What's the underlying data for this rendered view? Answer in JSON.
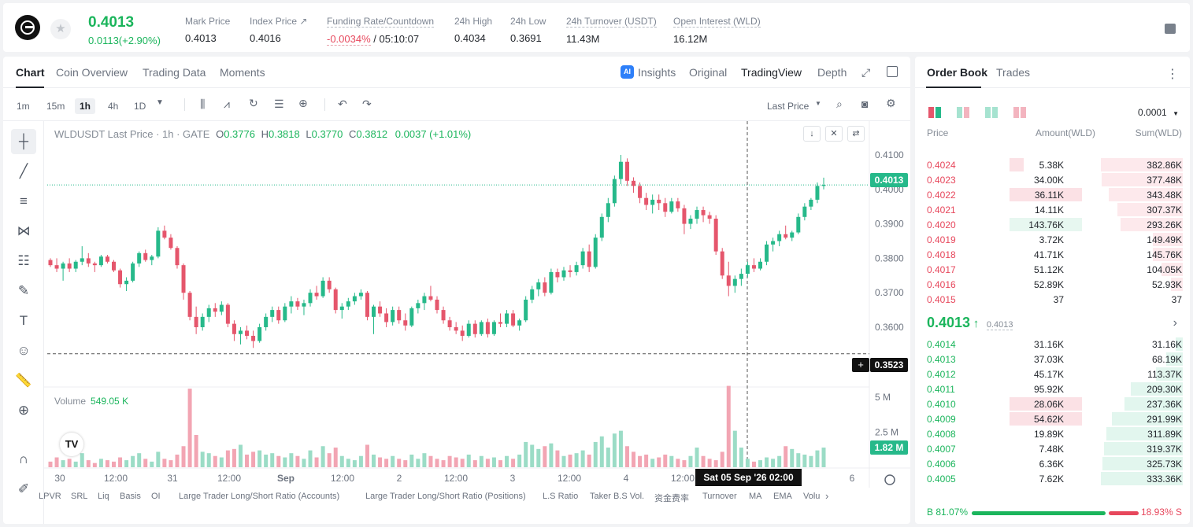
{
  "header": {
    "last_price": "0.4013",
    "change": "0.0113(+2.90%)",
    "stats": [
      {
        "label": "Mark Price",
        "value": "0.4013"
      },
      {
        "label": "Index Price ↗",
        "value": "0.4016"
      },
      {
        "label": "Funding Rate/Countdown",
        "value_rate": "-0.0034%",
        "value_countdown": "/ 05:10:07"
      },
      {
        "label": "24h High",
        "value": "0.4034"
      },
      {
        "label": "24h Low",
        "value": "0.3691"
      },
      {
        "label": "24h Turnover (USDT)",
        "value": "11.43M"
      },
      {
        "label": "Open Interest (WLD)",
        "value": "16.12M"
      }
    ]
  },
  "chart_tabs": [
    "Chart",
    "Coin Overview",
    "Trading Data",
    "Moments"
  ],
  "views": [
    "Insights",
    "Original",
    "TradingView",
    "Depth"
  ],
  "ai_badge": "AI",
  "intervals": [
    "1m",
    "15m",
    "1h",
    "4h",
    "1D"
  ],
  "price_type": "Last Price",
  "legend": {
    "title": "WLDUSDT Last Price · 1h · GATE",
    "o_label": "O",
    "o": "0.3776",
    "h_label": "H",
    "h": "0.3818",
    "l_label": "L",
    "l": "0.3770",
    "c_label": "C",
    "c": "0.3812",
    "chg": "0.0037 (+1.01%)"
  },
  "volume_legend": {
    "label": "Volume",
    "value": "549.05 K"
  },
  "price_tags": {
    "last": "0.4013",
    "cross": "0.3523",
    "volume": "1.82 M"
  },
  "crosshair_date": "Sat 05 Sep '26   02:00",
  "price_axis_labels": [
    "0.4100",
    "0.4000",
    "0.3900",
    "0.3800",
    "0.3700",
    "0.3600",
    "0.3500"
  ],
  "volume_axis_labels": [
    "5 M",
    "2.5 M"
  ],
  "time_labels": [
    "30",
    "12:00",
    "31",
    "12:00",
    "Sep",
    "12:00",
    "2",
    "12:00",
    "3",
    "12:00",
    "4",
    "12:00",
    "6"
  ],
  "indicators": [
    "LPVR",
    "SRL",
    "Liq",
    "Basis",
    "OI",
    "Large Trader Long/Short Ratio (Accounts)",
    "Large Trader Long/Short Ratio (Positions)",
    "L.S Ratio",
    "Taker B.S Vol.",
    "资金费率",
    "Turnover",
    "MA",
    "EMA",
    "Volu"
  ],
  "colors": {
    "up": "#26b98a",
    "down": "#e5566c",
    "green_text": "#1bb55c",
    "red_text": "#e7475c"
  },
  "chart_data": {
    "type": "candlestick",
    "symbol": "WLDUSDT",
    "interval": "1h",
    "ylim": [
      0.3495,
      0.4125
    ],
    "candles": [
      [
        0.3795,
        0.38,
        0.3775,
        0.378
      ],
      [
        0.378,
        0.38,
        0.376,
        0.377
      ],
      [
        0.377,
        0.379,
        0.3735,
        0.3785
      ],
      [
        0.3785,
        0.38,
        0.376,
        0.377
      ],
      [
        0.377,
        0.3795,
        0.376,
        0.379
      ],
      [
        0.379,
        0.3835,
        0.378,
        0.38
      ],
      [
        0.38,
        0.3815,
        0.3775,
        0.3785
      ],
      [
        0.3785,
        0.379,
        0.376,
        0.378
      ],
      [
        0.378,
        0.381,
        0.3775,
        0.3805
      ],
      [
        0.3805,
        0.381,
        0.3785,
        0.379
      ],
      [
        0.379,
        0.3795,
        0.376,
        0.3765
      ],
      [
        0.3765,
        0.377,
        0.3715,
        0.3725
      ],
      [
        0.3725,
        0.3745,
        0.3705,
        0.3735
      ],
      [
        0.3735,
        0.379,
        0.373,
        0.3785
      ],
      [
        0.3785,
        0.382,
        0.3775,
        0.3815
      ],
      [
        0.3815,
        0.3825,
        0.379,
        0.3795
      ],
      [
        0.3795,
        0.381,
        0.378,
        0.3805
      ],
      [
        0.3805,
        0.389,
        0.38,
        0.388
      ],
      [
        0.388,
        0.3895,
        0.3855,
        0.386
      ],
      [
        0.386,
        0.387,
        0.3825,
        0.383
      ],
      [
        0.383,
        0.3835,
        0.377,
        0.378
      ],
      [
        0.378,
        0.3785,
        0.368,
        0.37
      ],
      [
        0.37,
        0.3705,
        0.362,
        0.363
      ],
      [
        0.363,
        0.366,
        0.358,
        0.36
      ],
      [
        0.36,
        0.364,
        0.359,
        0.363
      ],
      [
        0.363,
        0.3665,
        0.3615,
        0.3655
      ],
      [
        0.3655,
        0.367,
        0.363,
        0.3645
      ],
      [
        0.3645,
        0.3675,
        0.3635,
        0.3665
      ],
      [
        0.3665,
        0.367,
        0.36,
        0.361
      ],
      [
        0.361,
        0.362,
        0.356,
        0.358
      ],
      [
        0.358,
        0.36,
        0.355,
        0.359
      ],
      [
        0.359,
        0.3605,
        0.3565,
        0.3575
      ],
      [
        0.3575,
        0.359,
        0.354,
        0.356
      ],
      [
        0.356,
        0.361,
        0.3555,
        0.36
      ],
      [
        0.36,
        0.364,
        0.359,
        0.363
      ],
      [
        0.363,
        0.366,
        0.3615,
        0.365
      ],
      [
        0.365,
        0.366,
        0.361,
        0.362
      ],
      [
        0.362,
        0.367,
        0.3615,
        0.366
      ],
      [
        0.366,
        0.369,
        0.364,
        0.3675
      ],
      [
        0.3675,
        0.3685,
        0.365,
        0.366
      ],
      [
        0.366,
        0.368,
        0.3635,
        0.367
      ],
      [
        0.367,
        0.371,
        0.366,
        0.37
      ],
      [
        0.37,
        0.372,
        0.368,
        0.369
      ],
      [
        0.369,
        0.3745,
        0.3685,
        0.3735
      ],
      [
        0.3735,
        0.3745,
        0.37,
        0.371
      ],
      [
        0.371,
        0.3715,
        0.364,
        0.365
      ],
      [
        0.365,
        0.367,
        0.3625,
        0.366
      ],
      [
        0.366,
        0.3685,
        0.365,
        0.3675
      ],
      [
        0.3675,
        0.37,
        0.3665,
        0.369
      ],
      [
        0.369,
        0.371,
        0.368,
        0.37
      ],
      [
        0.37,
        0.3705,
        0.362,
        0.363
      ],
      [
        0.363,
        0.3665,
        0.358,
        0.366
      ],
      [
        0.366,
        0.3675,
        0.363,
        0.364
      ],
      [
        0.364,
        0.3655,
        0.36,
        0.3615
      ],
      [
        0.3615,
        0.366,
        0.3605,
        0.365
      ],
      [
        0.365,
        0.366,
        0.361,
        0.362
      ],
      [
        0.362,
        0.364,
        0.359,
        0.3605
      ],
      [
        0.3605,
        0.366,
        0.36,
        0.3655
      ],
      [
        0.3655,
        0.368,
        0.364,
        0.367
      ],
      [
        0.367,
        0.37,
        0.365,
        0.369
      ],
      [
        0.369,
        0.372,
        0.3675,
        0.368
      ],
      [
        0.368,
        0.369,
        0.364,
        0.365
      ],
      [
        0.365,
        0.366,
        0.361,
        0.362
      ],
      [
        0.362,
        0.363,
        0.359,
        0.36
      ],
      [
        0.36,
        0.3615,
        0.358,
        0.359
      ],
      [
        0.359,
        0.3605,
        0.356,
        0.3575
      ],
      [
        0.3575,
        0.362,
        0.357,
        0.361
      ],
      [
        0.361,
        0.362,
        0.357,
        0.358
      ],
      [
        0.358,
        0.362,
        0.3575,
        0.3615
      ],
      [
        0.3615,
        0.3625,
        0.357,
        0.358
      ],
      [
        0.358,
        0.362,
        0.3575,
        0.3615
      ],
      [
        0.3615,
        0.364,
        0.36,
        0.361
      ],
      [
        0.361,
        0.365,
        0.36,
        0.364
      ],
      [
        0.364,
        0.365,
        0.36,
        0.3605
      ],
      [
        0.3605,
        0.3625,
        0.359,
        0.362
      ],
      [
        0.362,
        0.369,
        0.3615,
        0.368
      ],
      [
        0.368,
        0.372,
        0.367,
        0.371
      ],
      [
        0.371,
        0.374,
        0.369,
        0.373
      ],
      [
        0.373,
        0.3745,
        0.369,
        0.37
      ],
      [
        0.37,
        0.377,
        0.3695,
        0.376
      ],
      [
        0.376,
        0.377,
        0.373,
        0.3745
      ],
      [
        0.3745,
        0.3775,
        0.3735,
        0.3765
      ],
      [
        0.3765,
        0.378,
        0.3745,
        0.376
      ],
      [
        0.376,
        0.379,
        0.375,
        0.378
      ],
      [
        0.378,
        0.383,
        0.377,
        0.382
      ],
      [
        0.382,
        0.384,
        0.376,
        0.3775
      ],
      [
        0.3775,
        0.387,
        0.377,
        0.386
      ],
      [
        0.386,
        0.393,
        0.385,
        0.392
      ],
      [
        0.392,
        0.3975,
        0.3905,
        0.396
      ],
      [
        0.396,
        0.404,
        0.395,
        0.403
      ],
      [
        0.403,
        0.41,
        0.4015,
        0.408
      ],
      [
        0.408,
        0.409,
        0.401,
        0.4025
      ],
      [
        0.4025,
        0.4035,
        0.399,
        0.401
      ],
      [
        0.401,
        0.402,
        0.396,
        0.3975
      ],
      [
        0.3975,
        0.399,
        0.394,
        0.3955
      ],
      [
        0.3955,
        0.3985,
        0.393,
        0.397
      ],
      [
        0.397,
        0.3985,
        0.394,
        0.396
      ],
      [
        0.396,
        0.3975,
        0.392,
        0.3935
      ],
      [
        0.3935,
        0.3975,
        0.393,
        0.3965
      ],
      [
        0.3965,
        0.3975,
        0.3935,
        0.3945
      ],
      [
        0.3945,
        0.3955,
        0.387,
        0.39
      ],
      [
        0.39,
        0.3925,
        0.3885,
        0.3915
      ],
      [
        0.3915,
        0.395,
        0.39,
        0.394
      ],
      [
        0.394,
        0.395,
        0.3905,
        0.3925
      ],
      [
        0.3925,
        0.3935,
        0.39,
        0.3915
      ],
      [
        0.3915,
        0.3925,
        0.381,
        0.382
      ],
      [
        0.382,
        0.383,
        0.374,
        0.375
      ],
      [
        0.375,
        0.379,
        0.369,
        0.372
      ],
      [
        0.372,
        0.375,
        0.37,
        0.374
      ],
      [
        0.374,
        0.377,
        0.372,
        0.3755
      ],
      [
        0.3755,
        0.379,
        0.3745,
        0.378
      ],
      [
        0.378,
        0.38,
        0.376,
        0.377
      ],
      [
        0.377,
        0.38,
        0.3765,
        0.379
      ],
      [
        0.379,
        0.385,
        0.378,
        0.384
      ],
      [
        0.384,
        0.386,
        0.382,
        0.385
      ],
      [
        0.385,
        0.388,
        0.3835,
        0.387
      ],
      [
        0.387,
        0.3895,
        0.3855,
        0.386
      ],
      [
        0.386,
        0.388,
        0.385,
        0.3875
      ],
      [
        0.3875,
        0.393,
        0.387,
        0.392
      ],
      [
        0.392,
        0.396,
        0.391,
        0.395
      ],
      [
        0.395,
        0.3975,
        0.394,
        0.397
      ],
      [
        0.397,
        0.402,
        0.396,
        0.401
      ],
      [
        0.401,
        0.4034,
        0.4,
        0.4013
      ]
    ],
    "volumes": [
      0.4,
      0.7,
      0.5,
      0.6,
      0.4,
      1.0,
      0.5,
      0.3,
      0.6,
      0.5,
      0.4,
      0.7,
      0.5,
      0.8,
      1.0,
      0.6,
      0.4,
      1.1,
      0.6,
      0.5,
      0.9,
      1.5,
      5.6,
      2.3,
      1.1,
      1.0,
      0.8,
      0.7,
      1.2,
      1.3,
      1.6,
      0.9,
      1.1,
      1.2,
      0.9,
      1.0,
      0.8,
      0.7,
      1.0,
      0.8,
      0.6,
      1.2,
      0.7,
      1.5,
      1.0,
      1.4,
      0.8,
      0.6,
      0.5,
      0.8,
      1.6,
      0.9,
      0.7,
      0.6,
      0.8,
      0.6,
      0.5,
      0.9,
      0.6,
      1.0,
      0.8,
      0.6,
      0.5,
      0.8,
      0.7,
      0.6,
      0.9,
      0.5,
      0.8,
      0.6,
      0.7,
      0.5,
      0.8,
      0.6,
      0.9,
      1.8,
      1.6,
      1.3,
      1.5,
      1.7,
      1.2,
      0.8,
      0.9,
      1.0,
      1.2,
      0.9,
      1.8,
      2.2,
      1.4,
      2.4,
      2.6,
      1.5,
      1.1,
      0.8,
      0.9,
      0.6,
      0.7,
      0.9,
      0.8,
      0.6,
      0.5,
      0.8,
      1.4,
      0.8,
      0.6,
      0.5,
      1.1,
      5.8,
      2.6,
      1.4,
      0.6,
      0.4,
      0.5,
      0.7,
      0.6,
      0.8,
      1.5,
      1.3,
      1.0,
      0.9,
      0.8,
      1.2,
      1.4,
      0.9,
      1.5,
      1.2,
      1.6
    ],
    "volume_max": 6.0,
    "dashed_level": 0.3523
  },
  "orderbook": {
    "tabs": [
      "Order Book",
      "Trades"
    ],
    "precision": "0.0001",
    "headers": [
      "Price",
      "Amount(WLD)",
      "Sum(WLD)"
    ],
    "asks": [
      {
        "price": "0.4024",
        "amount": "5.38K",
        "sum": "382.86K",
        "amt_frac": 0.16,
        "sum_frac": 1.0
      },
      {
        "price": "0.4023",
        "amount": "34.00K",
        "sum": "377.48K",
        "amt_frac": 0.0,
        "sum_frac": 0.99
      },
      {
        "price": "0.4022",
        "amount": "36.11K",
        "sum": "343.48K",
        "amt_frac": 0.82,
        "sum_frac": 0.9
      },
      {
        "price": "0.4021",
        "amount": "14.11K",
        "sum": "307.37K",
        "amt_frac": 0.0,
        "sum_frac": 0.8
      },
      {
        "price": "0.4020",
        "amount": "143.76K",
        "sum": "293.26K",
        "amt_frac": 0.0,
        "sum_frac": 0.76
      },
      {
        "price": "0.4019",
        "amount": "3.72K",
        "sum": "149.49K",
        "amt_frac": 0.0,
        "sum_frac": 0.37
      },
      {
        "price": "0.4018",
        "amount": "41.71K",
        "sum": "145.76K",
        "amt_frac": 0.0,
        "sum_frac": 0.37
      },
      {
        "price": "0.4017",
        "amount": "51.12K",
        "sum": "104.05K",
        "amt_frac": 0.0,
        "sum_frac": 0.26
      },
      {
        "price": "0.4016",
        "amount": "52.89K",
        "sum": "52.93K",
        "amt_frac": 0.0,
        "sum_frac": 0.14
      },
      {
        "price": "0.4015",
        "amount": "37",
        "sum": "37",
        "amt_frac": 0.0,
        "sum_frac": 0.0
      }
    ],
    "mid_price": "0.4013",
    "mid_arrow": "↑",
    "mark_price": "0.4013",
    "bids": [
      {
        "price": "0.4014",
        "amount": "31.16K",
        "sum": "31.16K",
        "amt_frac": 0.0,
        "sum_frac": 0.09
      },
      {
        "price": "0.4013",
        "amount": "37.03K",
        "sum": "68.19K",
        "amt_frac": 0.0,
        "sum_frac": 0.2
      },
      {
        "price": "0.4012",
        "amount": "45.17K",
        "sum": "113.37K",
        "amt_frac": 0.0,
        "sum_frac": 0.33
      },
      {
        "price": "0.4011",
        "amount": "95.92K",
        "sum": "209.30K",
        "amt_frac": 0.0,
        "sum_frac": 0.63
      },
      {
        "price": "0.4010",
        "amount": "28.06K",
        "sum": "237.36K",
        "amt_frac": 0.82,
        "sum_frac": 0.71
      },
      {
        "price": "0.4009",
        "amount": "54.62K",
        "sum": "291.99K",
        "amt_frac": 0.82,
        "sum_frac": 0.87
      },
      {
        "price": "0.4008",
        "amount": "19.89K",
        "sum": "311.89K",
        "amt_frac": 0.0,
        "sum_frac": 0.93
      },
      {
        "price": "0.4007",
        "amount": "7.48K",
        "sum": "319.37K",
        "amt_frac": 0.0,
        "sum_frac": 0.96
      },
      {
        "price": "0.4006",
        "amount": "6.36K",
        "sum": "325.73K",
        "amt_frac": 0.0,
        "sum_frac": 0.98
      },
      {
        "price": "0.4005",
        "amount": "7.62K",
        "sum": "333.36K",
        "amt_frac": 0.0,
        "sum_frac": 1.0
      }
    ],
    "buy_ratio": "B 81.07%",
    "sell_ratio": "18.93% S"
  }
}
